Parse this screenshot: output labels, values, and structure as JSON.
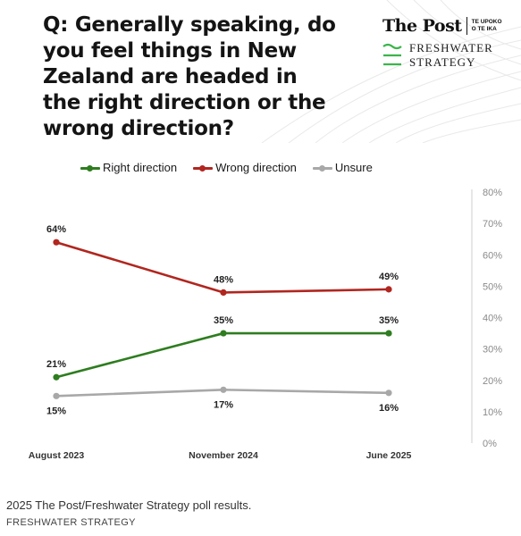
{
  "question": "Q: Generally speaking, do you feel things in New Zealand are headed in the right direction or the wrong direction?",
  "brand": {
    "post_name": "The Post",
    "post_sub": "TE UPOKO O TE IKA",
    "fw_line1": "FRESHWATER",
    "fw_line2": "STRATEGY",
    "fw_icon": "wave-lines-icon"
  },
  "colors": {
    "right": "#2e7d1f",
    "wrong": "#b1261f",
    "unsure": "#a8a8a8",
    "accent_green": "#3bb54a"
  },
  "chart_data": {
    "type": "line",
    "categories": [
      "August 2023",
      "November 2024",
      "June 2025"
    ],
    "series": [
      {
        "name": "Right direction",
        "values": [
          21,
          35,
          35
        ],
        "labels": [
          "21%",
          "35%",
          "35%"
        ],
        "color": "#2e7d1f"
      },
      {
        "name": "Wrong direction",
        "values": [
          64,
          48,
          49
        ],
        "labels": [
          "64%",
          "48%",
          "49%"
        ],
        "color": "#b1261f"
      },
      {
        "name": "Unsure",
        "values": [
          15,
          17,
          16
        ],
        "labels": [
          "15%",
          "17%",
          "16%"
        ],
        "color": "#a8a8a8"
      }
    ],
    "ylim": [
      0,
      80
    ],
    "yticks": [
      "0%",
      "10%",
      "20%",
      "30%",
      "40%",
      "50%",
      "60%",
      "70%",
      "80%"
    ],
    "legend": "top-left",
    "y_axis_position": "right",
    "grid": false
  },
  "caption": "2025 The Post/Freshwater Strategy poll results.",
  "credit": "FRESHWATER STRATEGY"
}
